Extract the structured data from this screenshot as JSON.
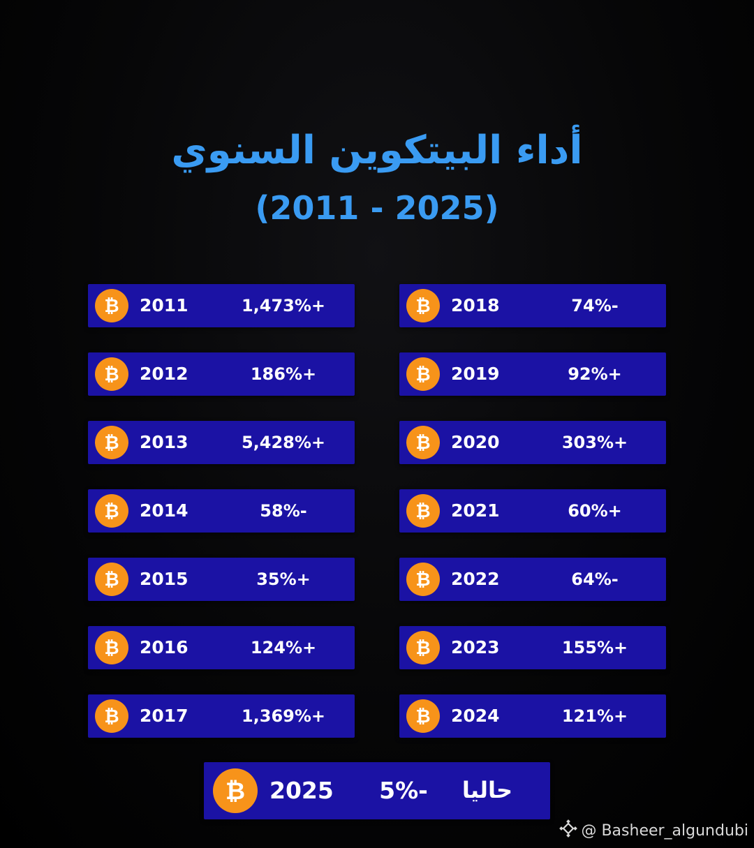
{
  "title": {
    "main": "أداء البيتكوين السنوي",
    "sub": "(2011 - 2025)"
  },
  "colors": {
    "background": "#000000",
    "title": "#3a9bf2",
    "row_background": "#1b12a4",
    "coin": "#f7931a",
    "text": "#ffffff"
  },
  "icon": "bitcoin-coin-icon",
  "left_column": [
    {
      "year": "2011",
      "change": "1,473%+"
    },
    {
      "year": "2012",
      "change": "186%+"
    },
    {
      "year": "2013",
      "change": "5,428%+"
    },
    {
      "year": "2014",
      "change": "58%-"
    },
    {
      "year": "2015",
      "change": "35%+"
    },
    {
      "year": "2016",
      "change": "124%+"
    },
    {
      "year": "2017",
      "change": "1,369%+"
    }
  ],
  "right_column": [
    {
      "year": "2018",
      "change": "74%-"
    },
    {
      "year": "2019",
      "change": "92%+"
    },
    {
      "year": "2020",
      "change": "303%+"
    },
    {
      "year": "2021",
      "change": "60%+"
    },
    {
      "year": "2022",
      "change": "64%-"
    },
    {
      "year": "2023",
      "change": "155%+"
    },
    {
      "year": "2024",
      "change": "121%+"
    }
  ],
  "current": {
    "year": "2025",
    "change": "5%-",
    "label": "حاليا"
  },
  "watermark": {
    "text": "@ Basheer_algundubi",
    "icon": "binance-square-icon"
  }
}
